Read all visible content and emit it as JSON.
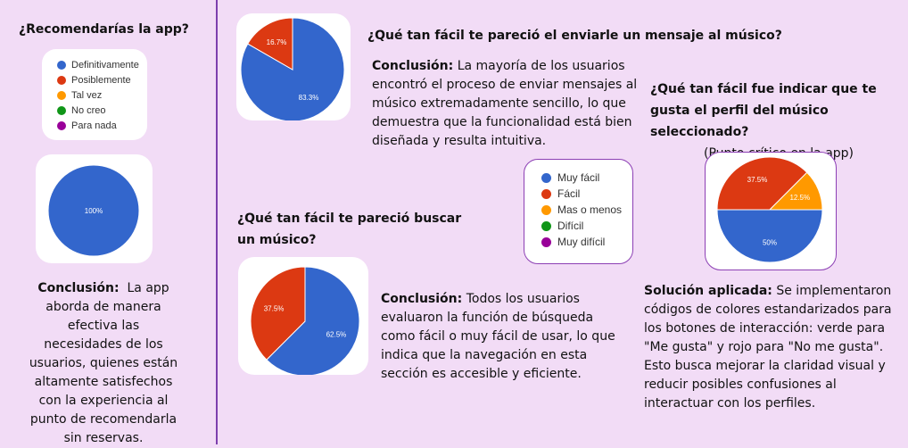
{
  "panel_left": {
    "title": "¿Recomendarías la app?",
    "legend": [
      {
        "label": "Definitivamente",
        "color": "#3366cc"
      },
      {
        "label": "Posiblemente",
        "color": "#dc3912"
      },
      {
        "label": "Tal vez",
        "color": "#ff9900"
      },
      {
        "label": "No creo",
        "color": "#109618"
      },
      {
        "label": "Para nada",
        "color": "#990099"
      }
    ],
    "conclusion_label": "Conclusión:",
    "conclusion_text": "La app aborda de manera efectiva las necesidades de los usuarios, quienes están altamente satisfechos con la experiencia al punto de recomendarla sin reservas."
  },
  "q_mensaje": {
    "title": "¿Qué tan fácil te pareció el enviarle un mensaje al músico?",
    "conclusion_label": "Conclusión:",
    "conclusion_text": "La mayoría de los usuarios encontró el proceso de enviar mensajes al músico extremadamente sencillo, lo que demuestra que la funcionalidad está bien diseñada y resulta intuitiva."
  },
  "q_busqueda": {
    "title": "¿Qué tan fácil te pareció buscar un músico?",
    "conclusion_label": "Conclusión:",
    "conclusion_text": "Todos los usuarios evaluaron la función de búsqueda como fácil o muy fácil de usar, lo que indica que la navegación en esta sección es accesible y eficiente."
  },
  "q_gusta": {
    "title": "¿Qué tan fácil fue indicar que te gusta el perfil del músico seleccionado?",
    "note": "(Punto crítico en la app)",
    "solution_label": "Solución aplicada:",
    "solution_text": "Se implementaron códigos de colores estandarizados para los botones de interacción: verde para \"Me gusta\" y rojo para \"No me gusta\". Esto busca mejorar la claridad visual y reducir posibles confusiones al interactuar con los perfiles."
  },
  "legend_easy": [
    {
      "label": "Muy fácil",
      "color": "#3366cc"
    },
    {
      "label": "Fácil",
      "color": "#dc3912"
    },
    {
      "label": "Mas o menos",
      "color": "#ff9900"
    },
    {
      "label": "Difícil",
      "color": "#109618"
    },
    {
      "label": "Muy difícil",
      "color": "#990099"
    }
  ],
  "chart_data": [
    {
      "type": "pie",
      "categories": [
        "Definitivamente"
      ],
      "values": [
        100
      ],
      "labels": [
        "100%"
      ],
      "colors": [
        "#3366cc"
      ]
    },
    {
      "type": "pie",
      "categories": [
        "Muy fácil",
        "Fácil"
      ],
      "values": [
        83.3,
        16.7
      ],
      "labels": [
        "83.3%",
        "16.7%"
      ],
      "colors": [
        "#3366cc",
        "#dc3912"
      ]
    },
    {
      "type": "pie",
      "categories": [
        "Muy fácil",
        "Fácil"
      ],
      "values": [
        62.5,
        37.5
      ],
      "labels": [
        "62.5%",
        "37.5%"
      ],
      "colors": [
        "#3366cc",
        "#dc3912"
      ]
    },
    {
      "type": "pie",
      "categories": [
        "Muy fácil",
        "Fácil",
        "Mas o menos"
      ],
      "values": [
        50,
        37.5,
        12.5
      ],
      "labels": [
        "50%",
        "37.5%",
        "12.5%"
      ],
      "colors": [
        "#3366cc",
        "#dc3912",
        "#ff9900"
      ]
    }
  ]
}
